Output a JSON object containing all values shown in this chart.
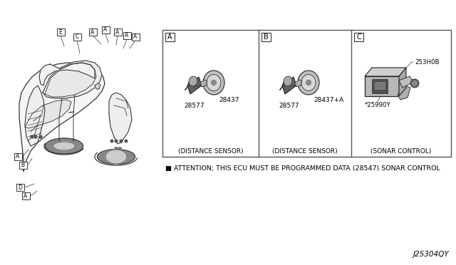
{
  "bg_color": "#ffffff",
  "fig_width": 6.4,
  "fig_height": 3.72,
  "dpi": 100,
  "diagram_code": "J25304QY",
  "attention_text": "■ ATTENTION; THIS ECU MUST BE PROGRAMMED DATA (28547) SONAR CONTROL",
  "box_A_label": "A",
  "box_B_label": "B",
  "box_C_label": "C",
  "box_A_caption": "(DISTANCE SENSOR)",
  "box_B_caption": "(DISTANCE SENSOR)",
  "box_C_caption": "(SONAR CONTROL)",
  "part_28577_A": "28577",
  "part_28437_A": "28437",
  "part_28577_B": "28577",
  "part_28437B": "28437+A",
  "part_C1": "253H0B",
  "part_C2": "*25990Y",
  "line_color": "#000000",
  "text_color": "#000000"
}
